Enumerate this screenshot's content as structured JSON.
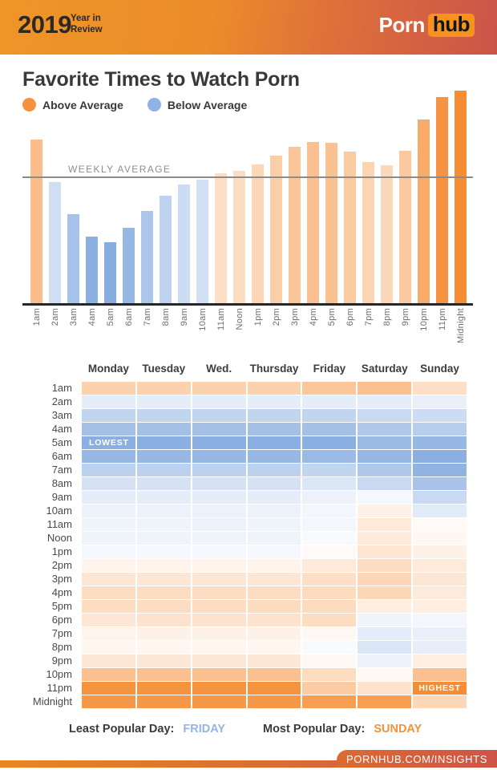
{
  "header": {
    "year": "2019",
    "subtitle_line1": "Year in",
    "subtitle_line2": "Review",
    "brand_left": "Porn",
    "brand_right": "hub"
  },
  "title": "Favorite Times to Watch Porn",
  "legend": {
    "above": {
      "label": "Above Average",
      "color": "#F6923E"
    },
    "below": {
      "label": "Below Average",
      "color": "#8FB3E5"
    }
  },
  "chart_data": [
    {
      "type": "bar",
      "title": "Hourly traffic relative to weekly average",
      "categories": [
        "1am",
        "2am",
        "3am",
        "4am",
        "5am",
        "6am",
        "7am",
        "8am",
        "9am",
        "10am",
        "11am",
        "Noon",
        "1pm",
        "2pm",
        "3pm",
        "4pm",
        "5pm",
        "6pm",
        "7pm",
        "8pm",
        "9pm",
        "10pm",
        "11pm",
        "Midnight"
      ],
      "values": [
        131,
        97,
        71,
        53,
        49,
        60,
        74,
        86,
        95,
        99,
        104,
        106,
        111,
        118,
        125,
        129,
        128,
        121,
        113,
        110,
        122,
        147,
        165,
        170
      ],
      "unit": "percent of weekly average (average = 100)",
      "average_line": {
        "label": "WEEKLY AVERAGE",
        "value": 100
      },
      "ylim": [
        0,
        175
      ],
      "above_color_light": "#FCE4CF",
      "above_color_strong": "#F68D35",
      "below_color_light": "#D3E1F4",
      "below_color_strong": "#87ACE0",
      "legend_position": "top-left",
      "grid": false
    },
    {
      "type": "heatmap",
      "title": "Traffic by day of week and hour, relative to average",
      "columns": [
        "Monday",
        "Tuesday",
        "Wed.",
        "Thursday",
        "Friday",
        "Saturday",
        "Sunday"
      ],
      "rows": [
        "1am",
        "2am",
        "3am",
        "4am",
        "5am",
        "6am",
        "7am",
        "8am",
        "9am",
        "10am",
        "11am",
        "Noon",
        "1pm",
        "2pm",
        "3pm",
        "4pm",
        "5pm",
        "6pm",
        "7pm",
        "8pm",
        "9pm",
        "10pm",
        "11pm",
        "Midnight"
      ],
      "value_scale": "-1 = most below average (blue), 0 = average (white), +1 = most above average (orange)",
      "above_color": "#F68D35",
      "below_color": "#85ABDF",
      "values": [
        [
          0.4,
          0.4,
          0.4,
          0.4,
          0.5,
          0.55,
          0.28
        ],
        [
          -0.22,
          -0.22,
          -0.22,
          -0.22,
          -0.22,
          -0.22,
          -0.18
        ],
        [
          -0.5,
          -0.5,
          -0.5,
          -0.5,
          -0.5,
          -0.45,
          -0.42
        ],
        [
          -0.75,
          -0.75,
          -0.75,
          -0.75,
          -0.75,
          -0.65,
          -0.6
        ],
        [
          -0.95,
          -0.95,
          -0.95,
          -0.95,
          -0.95,
          -0.82,
          -0.85
        ],
        [
          -0.85,
          -0.85,
          -0.85,
          -0.85,
          -0.82,
          -0.85,
          -0.95
        ],
        [
          -0.55,
          -0.55,
          -0.55,
          -0.55,
          -0.5,
          -0.65,
          -0.9
        ],
        [
          -0.35,
          -0.35,
          -0.35,
          -0.35,
          -0.3,
          -0.45,
          -0.7
        ],
        [
          -0.22,
          -0.22,
          -0.22,
          -0.22,
          -0.15,
          -0.08,
          -0.45
        ],
        [
          -0.15,
          -0.15,
          -0.15,
          -0.15,
          -0.1,
          0.12,
          -0.25
        ],
        [
          -0.13,
          -0.13,
          -0.15,
          -0.13,
          -0.1,
          0.18,
          0.04
        ],
        [
          -0.13,
          -0.13,
          -0.13,
          -0.13,
          -0.06,
          0.18,
          0.06
        ],
        [
          -0.08,
          -0.08,
          -0.08,
          -0.08,
          0.04,
          0.22,
          0.12
        ],
        [
          0.1,
          0.1,
          0.1,
          0.1,
          0.18,
          0.3,
          0.18
        ],
        [
          0.22,
          0.22,
          0.22,
          0.22,
          0.28,
          0.35,
          0.22
        ],
        [
          0.3,
          0.3,
          0.3,
          0.3,
          0.32,
          0.35,
          0.18
        ],
        [
          0.3,
          0.3,
          0.3,
          0.32,
          0.32,
          0.15,
          0.15
        ],
        [
          0.22,
          0.25,
          0.25,
          0.25,
          0.3,
          -0.12,
          -0.1
        ],
        [
          0.1,
          0.12,
          0.12,
          0.12,
          0.05,
          -0.22,
          -0.18
        ],
        [
          0.08,
          0.08,
          0.08,
          0.08,
          -0.06,
          -0.3,
          -0.2
        ],
        [
          0.2,
          0.2,
          0.2,
          0.2,
          0.05,
          -0.15,
          0.15
        ],
        [
          0.55,
          0.55,
          0.55,
          0.55,
          0.3,
          0.05,
          0.55
        ],
        [
          0.95,
          0.95,
          0.95,
          0.95,
          0.45,
          0.25,
          1.0
        ],
        [
          0.9,
          0.9,
          0.9,
          0.9,
          0.85,
          0.85,
          0.35
        ]
      ],
      "annotations": [
        {
          "row": "5am",
          "column": "Monday",
          "label": "LOWEST",
          "align": "left"
        },
        {
          "row": "11pm",
          "column": "Sunday",
          "label": "HIGHEST",
          "align": "center"
        }
      ]
    }
  ],
  "footer": {
    "least_label": "Least Popular Day:",
    "least_value": "FRIDAY",
    "least_color": "#93B5E5",
    "most_label": "Most Popular Day:",
    "most_value": "SUNDAY",
    "most_color": "#F5903C",
    "site_tab": "PORNHUB.COM/INSIGHTS"
  }
}
